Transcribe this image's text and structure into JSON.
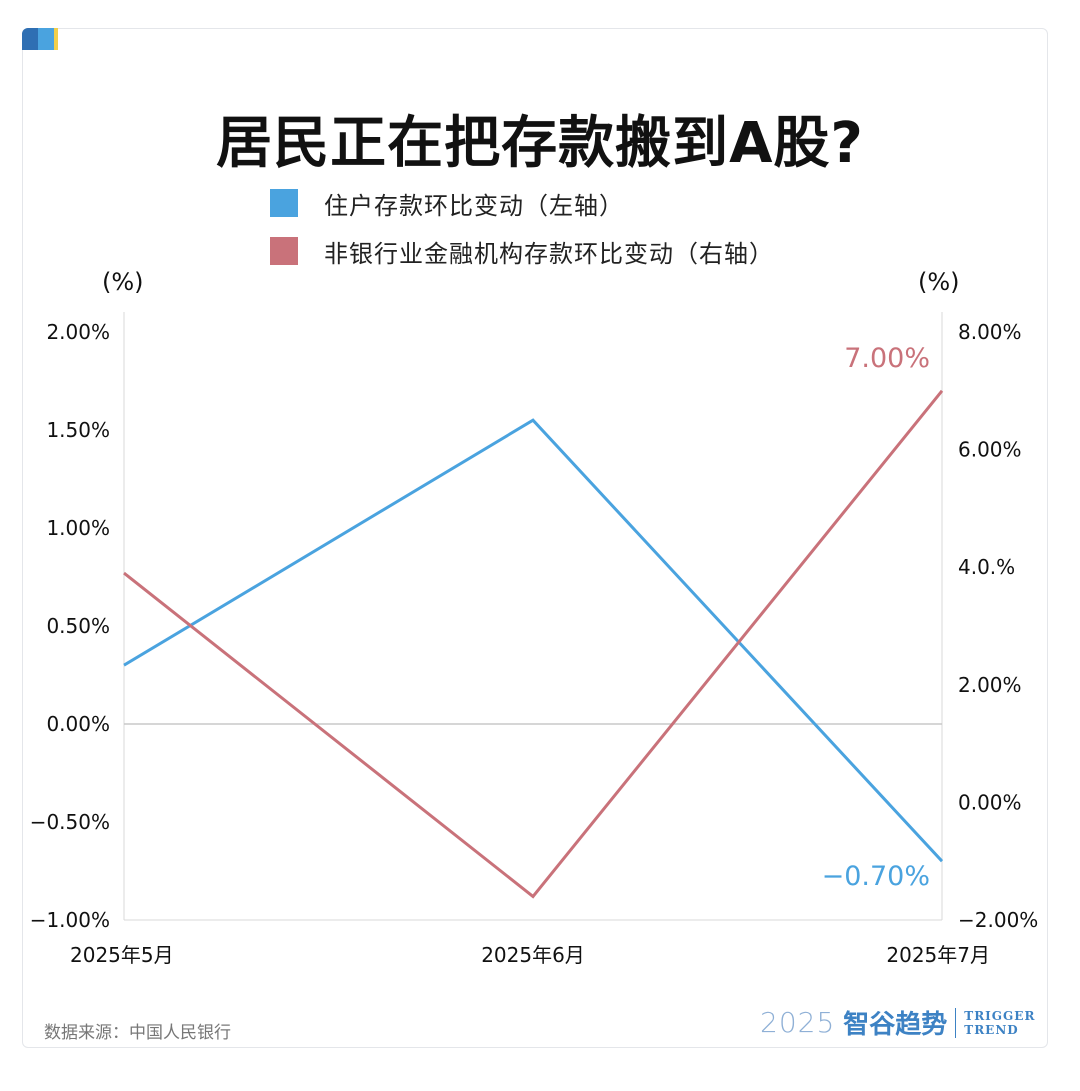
{
  "title": "居民正在把存款搬到A股?",
  "legend": [
    {
      "label": "住户存款环比变动（左轴）",
      "color": "#4aa3df"
    },
    {
      "label": "非银行业金融机构存款环比变动（右轴）",
      "color": "#c9727a"
    }
  ],
  "units": {
    "left": "(%)",
    "right": "(%)"
  },
  "source": "数据来源：中国人民银行",
  "brand": {
    "year": "2025",
    "name": "智谷趋势",
    "en_line1": "TRIGGER",
    "en_line2": "TREND"
  },
  "chart_data": {
    "type": "line",
    "title": "居民正在把存款搬到A股?",
    "categories": [
      "2025年5月",
      "2025年6月",
      "2025年7月"
    ],
    "left_axis": {
      "range": [
        -1.0,
        2.0
      ],
      "ticks": [
        2.0,
        1.5,
        1.0,
        0.5,
        0.0,
        -0.5,
        -1.0
      ],
      "tick_labels": [
        "2.00%",
        "1.50%",
        "1.00%",
        "0.50%",
        "0.00%",
        "−0.50%",
        "−1.00%"
      ]
    },
    "right_axis": {
      "range": [
        -2.0,
        8.0
      ],
      "ticks": [
        8.0,
        6.0,
        4.0,
        2.0,
        0.0,
        -2.0
      ],
      "tick_labels": [
        "8.00%",
        "6.00%",
        "4.0.%",
        "2.00%",
        "0.00%",
        "−2.00%"
      ]
    },
    "series": [
      {
        "name": "住户存款环比变动（左轴）",
        "axis": "left",
        "color": "#4aa3df",
        "values": [
          0.3,
          1.55,
          -0.7
        ],
        "end_label": "−0.70%"
      },
      {
        "name": "非银行业金融机构存款环比变动（右轴）",
        "axis": "right",
        "color": "#c9727a",
        "values": [
          3.9,
          -1.6,
          7.0
        ],
        "end_label": "7.00%"
      }
    ],
    "zero_line": true,
    "grid": false,
    "legend_position": "top"
  }
}
